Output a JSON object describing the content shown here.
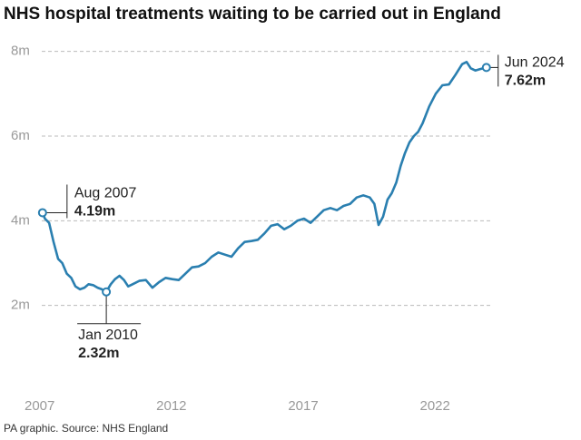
{
  "chart_data": {
    "type": "line",
    "title": "NHS hospital treatments waiting to be carried out in England",
    "source": "PA graphic. Source: NHS England",
    "color": "#2a7fb0",
    "x": [
      2007.58,
      2007.67,
      2007.83,
      2008.0,
      2008.17,
      2008.33,
      2008.5,
      2008.67,
      2008.83,
      2009.0,
      2009.17,
      2009.33,
      2009.5,
      2009.67,
      2009.83,
      2010.0,
      2010.17,
      2010.33,
      2010.5,
      2010.67,
      2010.83,
      2011.0,
      2011.25,
      2011.5,
      2011.75,
      2012.0,
      2012.25,
      2012.5,
      2012.75,
      2013.0,
      2013.25,
      2013.5,
      2013.75,
      2014.0,
      2014.25,
      2014.5,
      2014.75,
      2015.0,
      2015.25,
      2015.5,
      2015.75,
      2016.0,
      2016.25,
      2016.5,
      2016.75,
      2017.0,
      2017.25,
      2017.5,
      2017.75,
      2018.0,
      2018.25,
      2018.5,
      2018.75,
      2019.0,
      2019.25,
      2019.5,
      2019.75,
      2020.0,
      2020.17,
      2020.33,
      2020.5,
      2020.67,
      2020.83,
      2021.0,
      2021.17,
      2021.33,
      2021.5,
      2021.67,
      2021.83,
      2022.0,
      2022.25,
      2022.5,
      2022.75,
      2023.0,
      2023.25,
      2023.5,
      2023.67,
      2023.83,
      2024.0,
      2024.17,
      2024.42
    ],
    "values": [
      4.19,
      4.05,
      3.95,
      3.5,
      3.1,
      3.0,
      2.75,
      2.65,
      2.45,
      2.38,
      2.42,
      2.5,
      2.48,
      2.42,
      2.38,
      2.32,
      2.5,
      2.62,
      2.7,
      2.6,
      2.45,
      2.5,
      2.58,
      2.6,
      2.42,
      2.55,
      2.65,
      2.62,
      2.6,
      2.75,
      2.9,
      2.92,
      3.0,
      3.15,
      3.25,
      3.2,
      3.15,
      3.35,
      3.5,
      3.52,
      3.55,
      3.7,
      3.88,
      3.92,
      3.8,
      3.88,
      4.0,
      4.05,
      3.95,
      4.1,
      4.25,
      4.3,
      4.25,
      4.35,
      4.4,
      4.55,
      4.6,
      4.55,
      4.4,
      3.9,
      4.1,
      4.5,
      4.65,
      4.9,
      5.3,
      5.6,
      5.85,
      6.0,
      6.1,
      6.3,
      6.7,
      7.0,
      7.2,
      7.22,
      7.45,
      7.7,
      7.75,
      7.6,
      7.55,
      7.58,
      7.62
    ],
    "point_names": [
      "Aug 2007",
      null,
      null,
      null,
      null,
      null,
      null,
      null,
      null,
      null,
      null,
      null,
      null,
      null,
      null,
      "Jan 2010",
      null,
      null,
      null,
      null,
      null,
      null,
      null,
      null,
      null,
      null,
      null,
      null,
      null,
      null,
      null,
      null,
      null,
      null,
      null,
      null,
      null,
      null,
      null,
      null,
      null,
      null,
      null,
      null,
      null,
      null,
      null,
      null,
      null,
      null,
      null,
      null,
      null,
      null,
      null,
      null,
      null,
      null,
      null,
      null,
      null,
      null,
      null,
      null,
      null,
      null,
      null,
      null,
      null,
      null,
      null,
      null,
      null,
      null,
      null,
      null,
      null,
      null,
      null,
      null,
      "Jun 2024"
    ],
    "value_labels": [
      "4.19m",
      null,
      null,
      null,
      null,
      null,
      null,
      null,
      null,
      null,
      null,
      null,
      null,
      null,
      null,
      "2.32m",
      null,
      null,
      null,
      null,
      null,
      null,
      null,
      null,
      null,
      null,
      null,
      null,
      null,
      null,
      null,
      null,
      null,
      null,
      null,
      null,
      null,
      null,
      null,
      null,
      null,
      null,
      null,
      null,
      null,
      null,
      null,
      null,
      null,
      null,
      null,
      null,
      null,
      null,
      null,
      null,
      null,
      null,
      null,
      null,
      null,
      null,
      null,
      null,
      null,
      null,
      null,
      null,
      null,
      null,
      null,
      null,
      null,
      null,
      null,
      null,
      null,
      null,
      null,
      null,
      "7.62m"
    ],
    "xlim": [
      2007,
      2024.6
    ],
    "xticks": [
      2007,
      2012,
      2017,
      2022
    ],
    "ylim": [
      0,
      8.4
    ],
    "yticks": [
      {
        "value": 2,
        "label": "2m"
      },
      {
        "value": 4,
        "label": "4m"
      },
      {
        "value": 6,
        "label": "6m"
      },
      {
        "value": 8,
        "label": "8m"
      }
    ],
    "grid": true
  }
}
